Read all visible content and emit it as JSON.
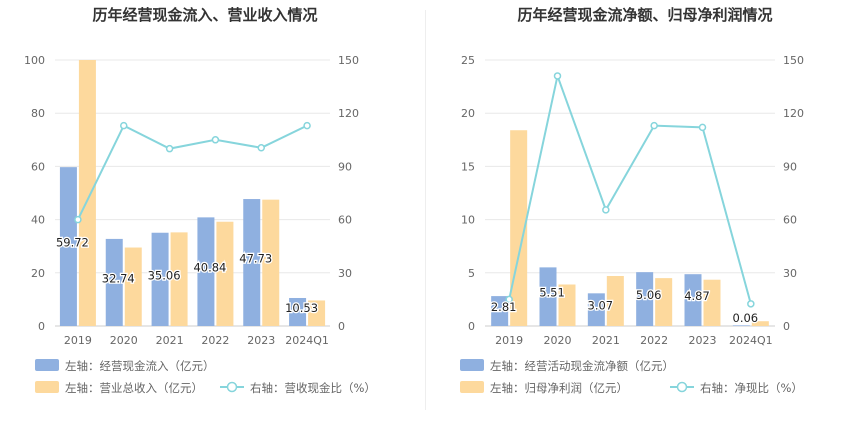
{
  "chart_data": [
    {
      "type": "bar+line",
      "title": "历年经营现金流入、营业收入情况",
      "categories": [
        "2019",
        "2020",
        "2021",
        "2022",
        "2023",
        "2024Q1"
      ],
      "series": [
        {
          "name": "左轴：经营现金流入（亿元）",
          "type": "bar",
          "axis": "left",
          "color": "#8fb0e0",
          "values": [
            59.72,
            32.74,
            35.06,
            40.84,
            47.73,
            10.53
          ],
          "labels": [
            "59.72",
            "32.74",
            "35.06",
            "40.84",
            "47.73",
            "10.53"
          ]
        },
        {
          "name": "左轴：营业总收入（亿元）",
          "type": "bar",
          "axis": "left",
          "color": "#fdd99d",
          "values": [
            100,
            29.5,
            35.2,
            39.2,
            47.5,
            9.6
          ]
        },
        {
          "name": "右轴：营收现金比（%）",
          "type": "line",
          "axis": "right",
          "color": "#86d5dc",
          "values": [
            60,
            113,
            100,
            105,
            100.5,
            113
          ]
        }
      ],
      "left_axis": {
        "min": 0,
        "max": 100,
        "ticks": [
          "0",
          "20",
          "40",
          "60",
          "80",
          "100"
        ]
      },
      "right_axis": {
        "min": 0,
        "max": 150,
        "ticks": [
          "0",
          "30",
          "60",
          "90",
          "120",
          "150"
        ]
      }
    },
    {
      "type": "bar+line",
      "title": "历年经营现金流净额、归母净利润情况",
      "categories": [
        "2019",
        "2020",
        "2021",
        "2022",
        "2023",
        "2024Q1"
      ],
      "series": [
        {
          "name": "左轴：经营活动现金流净额（亿元）",
          "type": "bar",
          "axis": "left",
          "color": "#8fb0e0",
          "values": [
            2.81,
            5.51,
            3.07,
            5.06,
            4.87,
            0.06
          ],
          "labels": [
            "2.81",
            "5.51",
            "3.07",
            "5.06",
            "4.87",
            "0.06"
          ]
        },
        {
          "name": "左轴：归母净利润（亿元）",
          "type": "bar",
          "axis": "left",
          "color": "#fdd99d",
          "values": [
            18.4,
            3.9,
            4.7,
            4.5,
            4.35,
            0.45
          ]
        },
        {
          "name": "右轴：净现比（%）",
          "type": "line",
          "axis": "right",
          "color": "#86d5dc",
          "values": [
            15,
            141,
            65.5,
            113,
            112,
            12.5
          ]
        }
      ],
      "left_axis": {
        "min": 0,
        "max": 25,
        "ticks": [
          "0",
          "5",
          "10",
          "15",
          "20",
          "25"
        ]
      },
      "right_axis": {
        "min": 0,
        "max": 150,
        "ticks": [
          "0",
          "30",
          "60",
          "90",
          "120",
          "150"
        ]
      }
    }
  ]
}
